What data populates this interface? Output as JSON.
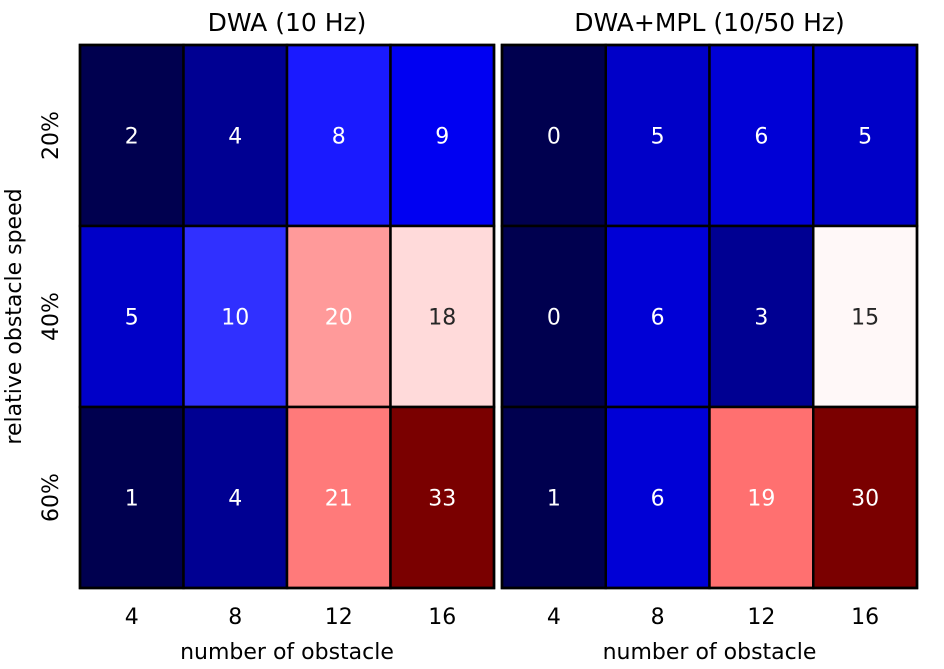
{
  "chart_data": [
    {
      "type": "heatmap",
      "title": "DWA (10 Hz)",
      "xlabel": "number of obstacle",
      "ylabel": "relative obstacle speed",
      "x_categories": [
        "4",
        "8",
        "12",
        "16"
      ],
      "y_categories": [
        "20%",
        "40%",
        "60%"
      ],
      "values": [
        [
          2,
          4,
          8,
          9
        ],
        [
          5,
          10,
          20,
          18
        ],
        [
          1,
          4,
          21,
          33
        ]
      ],
      "colormap": "seismic",
      "grid": true
    },
    {
      "type": "heatmap",
      "title": "DWA+MPL (10/50 Hz)",
      "xlabel": "number of obstacle",
      "ylabel": "",
      "x_categories": [
        "4",
        "8",
        "12",
        "16"
      ],
      "y_categories": [
        "20%",
        "40%",
        "60%"
      ],
      "values": [
        [
          0,
          5,
          6,
          5
        ],
        [
          0,
          6,
          3,
          15
        ],
        [
          1,
          6,
          19,
          30
        ]
      ],
      "colormap": "seismic",
      "grid": true
    }
  ],
  "colors": {
    "cells_dwa": [
      [
        "#00004f",
        "#000092",
        "#1a1aff",
        "#0000f2"
      ],
      [
        "#0000c8",
        "#3030ff",
        "#ff9a9a",
        "#ffdada"
      ],
      [
        "#00004f",
        "#000092",
        "#ff7a7a",
        "#7a0000"
      ]
    ],
    "cells_mpl": [
      [
        "#00004f",
        "#0000c8",
        "#0000d6",
        "#0000c8"
      ],
      [
        "#00004f",
        "#0000d6",
        "#000092",
        "#fff8f8"
      ],
      [
        "#00004f",
        "#0000d6",
        "#ff7070",
        "#7a0000"
      ]
    ],
    "text_light": "#ffffff",
    "text_dark": "#262626",
    "cell_border": "#000000"
  }
}
